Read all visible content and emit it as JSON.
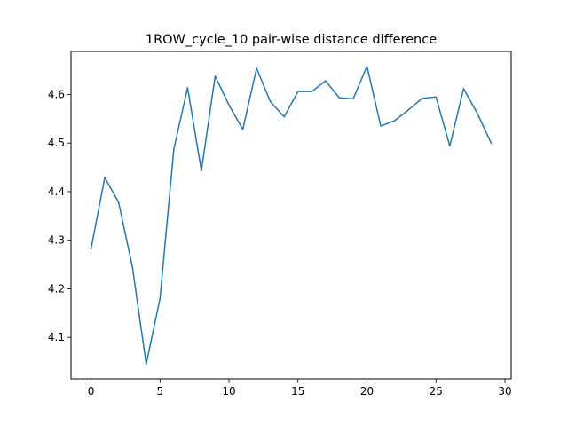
{
  "chart_data": {
    "type": "line",
    "title": "1ROW_cycle_10 pair-wise distance difference",
    "xlabel": "",
    "ylabel": "",
    "x": [
      0,
      1,
      2,
      3,
      4,
      5,
      6,
      7,
      8,
      9,
      10,
      11,
      12,
      13,
      14,
      15,
      16,
      17,
      18,
      19,
      20,
      21,
      22,
      23,
      24,
      25,
      26,
      27,
      28,
      29
    ],
    "series": [
      {
        "color": "#1f77b4",
        "values": [
          4.282,
          4.429,
          4.378,
          4.245,
          4.045,
          4.18,
          4.487,
          4.614,
          4.443,
          4.638,
          4.578,
          4.528,
          4.654,
          4.585,
          4.554,
          4.606,
          4.606,
          4.628,
          4.593,
          4.591,
          4.658,
          4.535,
          4.546,
          4.568,
          4.592,
          4.595,
          4.494,
          4.612,
          4.561,
          4.5
        ]
      }
    ],
    "xlim": [
      -1.45,
      30.45
    ],
    "ylim": [
      4.0145,
      4.6885
    ],
    "xticks": [
      0,
      5,
      10,
      15,
      20,
      25,
      30
    ],
    "yticks": [
      4.1,
      4.2,
      4.3,
      4.4,
      4.5,
      4.6
    ],
    "grid": false,
    "legend": "none"
  }
}
